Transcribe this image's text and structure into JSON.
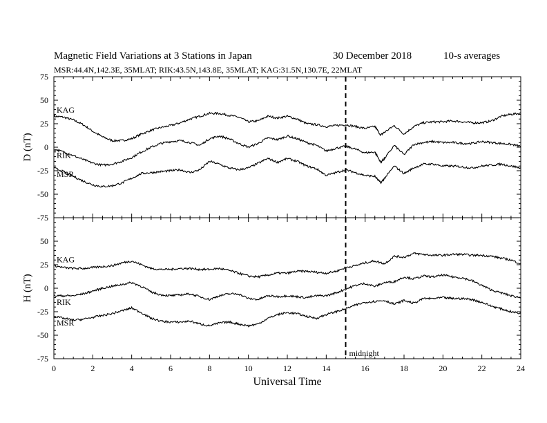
{
  "header": {
    "title": "Magnetic Field Variations at 3 Stations in Japan",
    "date": "30 December 2018",
    "averaging": "10-s averages",
    "stations_line": "MSR:44.4N,142.3E, 35MLAT;  RIK:43.5N,143.8E, 35MLAT;  KAG:31.5N,130.7E, 22MLAT"
  },
  "chart_data": [
    {
      "type": "line",
      "panel": "D",
      "ylabel": "D (nT)",
      "xlabel": "",
      "xlim": [
        0,
        24
      ],
      "ylim": [
        -75,
        75
      ],
      "xticks": [
        0,
        2,
        4,
        6,
        8,
        10,
        12,
        14,
        16,
        18,
        20,
        22,
        24
      ],
      "yticks": [
        -75,
        -50,
        -25,
        0,
        25,
        50,
        75
      ],
      "annotations": [
        {
          "text": "midnight",
          "x": 15
        }
      ],
      "series": [
        {
          "name": "KAG",
          "x": [
            0,
            0.5,
            1,
            1.5,
            2,
            2.5,
            3,
            3.5,
            4,
            4.5,
            5,
            5.5,
            6,
            6.5,
            7,
            7.5,
            8,
            8.5,
            9,
            9.5,
            10,
            10.5,
            11,
            11.5,
            12,
            12.5,
            13,
            13.5,
            14,
            14.5,
            15,
            15.5,
            16,
            16.5,
            16.8,
            17,
            17.5,
            18,
            18.5,
            19,
            19.5,
            20,
            20.5,
            21,
            21.5,
            22,
            22.5,
            23,
            23.5,
            24
          ],
          "y": [
            33,
            32,
            29,
            24,
            17,
            11,
            7,
            7,
            9,
            14,
            18,
            21,
            23,
            26,
            30,
            33,
            36,
            36,
            34,
            32,
            27,
            28,
            33,
            31,
            33,
            30,
            25,
            24,
            22,
            23,
            24,
            22,
            20,
            22,
            13,
            16,
            23,
            14,
            22,
            26,
            27,
            27,
            28,
            27,
            26,
            26,
            28,
            33,
            35,
            36
          ]
        },
        {
          "name": "RIK",
          "x": [
            0,
            0.5,
            1,
            1.5,
            2,
            2.5,
            3,
            3.5,
            4,
            4.5,
            5,
            5.5,
            6,
            6.5,
            7,
            7.5,
            8,
            8.5,
            9,
            9.5,
            10,
            10.5,
            11,
            11.5,
            12,
            12.5,
            13,
            13.5,
            14,
            14.5,
            15,
            15.5,
            16,
            16.5,
            16.8,
            17,
            17.5,
            18,
            18.5,
            19,
            19.5,
            20,
            20.5,
            21,
            21.5,
            22,
            22.5,
            23,
            23.5,
            24
          ],
          "y": [
            -2,
            -5,
            -9,
            -13,
            -17,
            -19,
            -18,
            -15,
            -11,
            -5,
            0,
            4,
            6,
            7,
            5,
            2,
            9,
            12,
            9,
            4,
            0,
            4,
            10,
            8,
            12,
            9,
            5,
            2,
            -4,
            -1,
            1,
            -2,
            -6,
            -5,
            -16,
            -12,
            2,
            -8,
            3,
            5,
            6,
            5,
            5,
            4,
            4,
            6,
            5,
            4,
            3,
            1
          ]
        },
        {
          "name": "MSR",
          "x": [
            0,
            0.5,
            1,
            1.5,
            2,
            2.5,
            3,
            3.5,
            4,
            4.5,
            5,
            5.5,
            6,
            6.5,
            7,
            7.5,
            8,
            8.5,
            9,
            9.5,
            10,
            10.5,
            11,
            11.5,
            12,
            12.5,
            13,
            13.5,
            14,
            14.5,
            15,
            15.5,
            16,
            16.5,
            16.8,
            17,
            17.5,
            18,
            18.5,
            19,
            19.5,
            20,
            20.5,
            21,
            21.5,
            22,
            22.5,
            23,
            23.5,
            24
          ],
          "y": [
            -22,
            -26,
            -31,
            -36,
            -40,
            -42,
            -41,
            -38,
            -33,
            -28,
            -27,
            -26,
            -25,
            -24,
            -27,
            -24,
            -15,
            -18,
            -22,
            -24,
            -22,
            -17,
            -12,
            -16,
            -12,
            -15,
            -20,
            -23,
            -30,
            -27,
            -24,
            -27,
            -30,
            -31,
            -38,
            -33,
            -20,
            -28,
            -22,
            -18,
            -18,
            -20,
            -20,
            -21,
            -22,
            -20,
            -19,
            -18,
            -20,
            -22
          ]
        }
      ]
    },
    {
      "type": "line",
      "panel": "H",
      "ylabel": "H (nT)",
      "xlabel": "Universal Time",
      "xlim": [
        0,
        24
      ],
      "ylim": [
        -75,
        75
      ],
      "xticks": [
        0,
        2,
        4,
        6,
        8,
        10,
        12,
        14,
        16,
        18,
        20,
        22,
        24
      ],
      "yticks": [
        -75,
        -50,
        -25,
        0,
        25,
        50,
        75
      ],
      "series": [
        {
          "name": "KAG",
          "x": [
            0,
            0.5,
            1,
            1.5,
            2,
            2.5,
            3,
            3.5,
            4,
            4.5,
            5,
            5.5,
            6,
            6.5,
            7,
            7.5,
            8,
            8.5,
            9,
            9.5,
            10,
            10.5,
            11,
            11.5,
            12,
            12.5,
            13,
            13.5,
            14,
            14.5,
            15,
            15.5,
            16,
            16.5,
            17,
            17.5,
            18,
            18.5,
            19,
            19.5,
            20,
            20.5,
            21,
            21.5,
            22,
            22.5,
            23,
            23.5,
            24
          ],
          "y": [
            24,
            22,
            21,
            21,
            22,
            23,
            24,
            27,
            29,
            25,
            21,
            20,
            20,
            21,
            21,
            20,
            20,
            21,
            19,
            16,
            13,
            12,
            14,
            16,
            16,
            18,
            18,
            17,
            16,
            18,
            22,
            24,
            27,
            29,
            26,
            34,
            33,
            37,
            36,
            35,
            35,
            36,
            36,
            35,
            35,
            34,
            32,
            30,
            26
          ]
        },
        {
          "name": "RIK",
          "x": [
            0,
            0.5,
            1,
            1.5,
            2,
            2.5,
            3,
            3.5,
            4,
            4.5,
            5,
            5.5,
            6,
            6.5,
            7,
            7.5,
            8,
            8.5,
            9,
            9.5,
            10,
            10.5,
            11,
            11.5,
            12,
            12.5,
            13,
            13.5,
            14,
            14.5,
            15,
            15.5,
            16,
            16.5,
            17,
            17.5,
            18,
            18.5,
            19,
            19.5,
            20,
            20.5,
            21,
            21.5,
            22,
            22.5,
            23,
            23.5,
            24
          ],
          "y": [
            -8,
            -8,
            -8,
            -6,
            -3,
            0,
            2,
            4,
            6,
            2,
            -4,
            -7,
            -8,
            -7,
            -6,
            -9,
            -12,
            -8,
            -6,
            -6,
            -11,
            -12,
            -8,
            -9,
            -8,
            -9,
            -10,
            -8,
            -8,
            -5,
            -1,
            3,
            5,
            2,
            6,
            7,
            12,
            10,
            13,
            12,
            14,
            12,
            11,
            8,
            3,
            -2,
            -5,
            -8,
            -10
          ]
        },
        {
          "name": "MSR",
          "x": [
            0,
            0.5,
            1,
            1.5,
            2,
            2.5,
            3,
            3.5,
            4,
            4.5,
            5,
            5.5,
            6,
            6.5,
            7,
            7.5,
            8,
            8.5,
            9,
            9.5,
            10,
            10.5,
            11,
            11.5,
            12,
            12.5,
            13,
            13.5,
            14,
            14.5,
            15,
            15.5,
            16,
            16.5,
            17,
            17.5,
            18,
            18.5,
            19,
            19.5,
            20,
            20.5,
            21,
            21.5,
            22,
            22.5,
            23,
            23.5,
            24
          ],
          "y": [
            -30,
            -32,
            -34,
            -33,
            -31,
            -29,
            -27,
            -24,
            -21,
            -26,
            -32,
            -35,
            -36,
            -36,
            -35,
            -38,
            -40,
            -37,
            -36,
            -38,
            -40,
            -38,
            -32,
            -28,
            -26,
            -27,
            -30,
            -32,
            -28,
            -25,
            -22,
            -18,
            -15,
            -14,
            -13,
            -17,
            -13,
            -16,
            -11,
            -11,
            -10,
            -11,
            -11,
            -12,
            -15,
            -19,
            -22,
            -25,
            -27
          ]
        }
      ]
    }
  ]
}
